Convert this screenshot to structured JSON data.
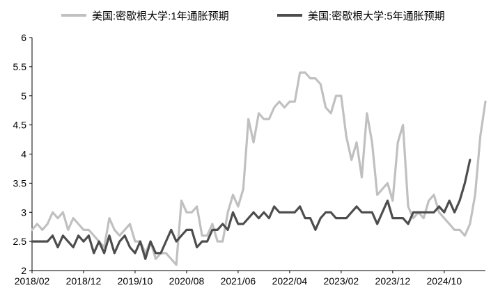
{
  "chart_data": {
    "type": "line",
    "title": "",
    "xlabel": "",
    "ylabel": "",
    "ylim": [
      2,
      6
    ],
    "yticks": [
      "2",
      "2.5",
      "3",
      "3.5",
      "4",
      "4.5",
      "5",
      "5.5",
      "6"
    ],
    "xtick_labels": [
      "2018/02",
      "2018/12",
      "2019/10",
      "2020/08",
      "2021/06",
      "2022/04",
      "2023/02",
      "2023/12",
      "2024/10"
    ],
    "start": "2018/02",
    "grid": false,
    "legend_position": "top",
    "series": [
      {
        "name": "美国:密歇根大学:1年通胀预期",
        "color": "#c0c0c0",
        "values": [
          2.7,
          2.8,
          2.7,
          2.8,
          3.0,
          2.9,
          3.0,
          2.7,
          2.9,
          2.8,
          2.7,
          2.7,
          2.6,
          2.5,
          2.4,
          2.9,
          2.7,
          2.6,
          2.7,
          2.8,
          2.5,
          2.5,
          2.3,
          2.5,
          2.2,
          2.3,
          2.3,
          2.2,
          2.1,
          3.2,
          3.0,
          3.0,
          3.1,
          2.6,
          2.6,
          2.8,
          2.5,
          2.5,
          3.0,
          3.3,
          3.1,
          3.4,
          4.6,
          4.2,
          4.7,
          4.6,
          4.6,
          4.8,
          4.9,
          4.8,
          4.9,
          4.9,
          5.4,
          5.4,
          5.3,
          5.3,
          5.2,
          4.8,
          4.7,
          5.0,
          5.0,
          4.3,
          3.9,
          4.2,
          3.6,
          4.7,
          4.2,
          3.3,
          3.4,
          3.5,
          3.2,
          4.2,
          4.5,
          3.1,
          2.9,
          3.0,
          2.9,
          3.2,
          3.3,
          3.0,
          2.9,
          2.8,
          2.7,
          2.7,
          2.6,
          2.8,
          3.3,
          4.3,
          4.9
        ]
      },
      {
        "name": "美国:密歇根大学:5年通胀预期",
        "color": "#4d4d4d",
        "values": [
          2.5,
          2.5,
          2.5,
          2.5,
          2.6,
          2.4,
          2.6,
          2.5,
          2.4,
          2.6,
          2.5,
          2.6,
          2.3,
          2.5,
          2.3,
          2.6,
          2.3,
          2.5,
          2.6,
          2.4,
          2.3,
          2.5,
          2.2,
          2.5,
          2.3,
          2.3,
          2.5,
          2.7,
          2.5,
          2.6,
          2.7,
          2.7,
          2.4,
          2.5,
          2.5,
          2.7,
          2.7,
          2.8,
          2.7,
          3.0,
          2.8,
          2.8,
          2.9,
          3.0,
          2.9,
          3.0,
          2.9,
          3.1,
          3.0,
          3.0,
          3.0,
          3.0,
          3.1,
          2.9,
          2.9,
          2.7,
          2.9,
          3.0,
          3.0,
          2.9,
          2.9,
          2.9,
          3.0,
          3.1,
          3.0,
          3.0,
          3.0,
          2.8,
          3.0,
          3.2,
          2.9,
          2.9,
          2.9,
          2.8,
          3.0,
          3.0,
          3.0,
          3.0,
          3.0,
          3.1,
          3.0,
          3.2,
          3.0,
          3.2,
          3.5,
          3.9
        ]
      }
    ]
  }
}
